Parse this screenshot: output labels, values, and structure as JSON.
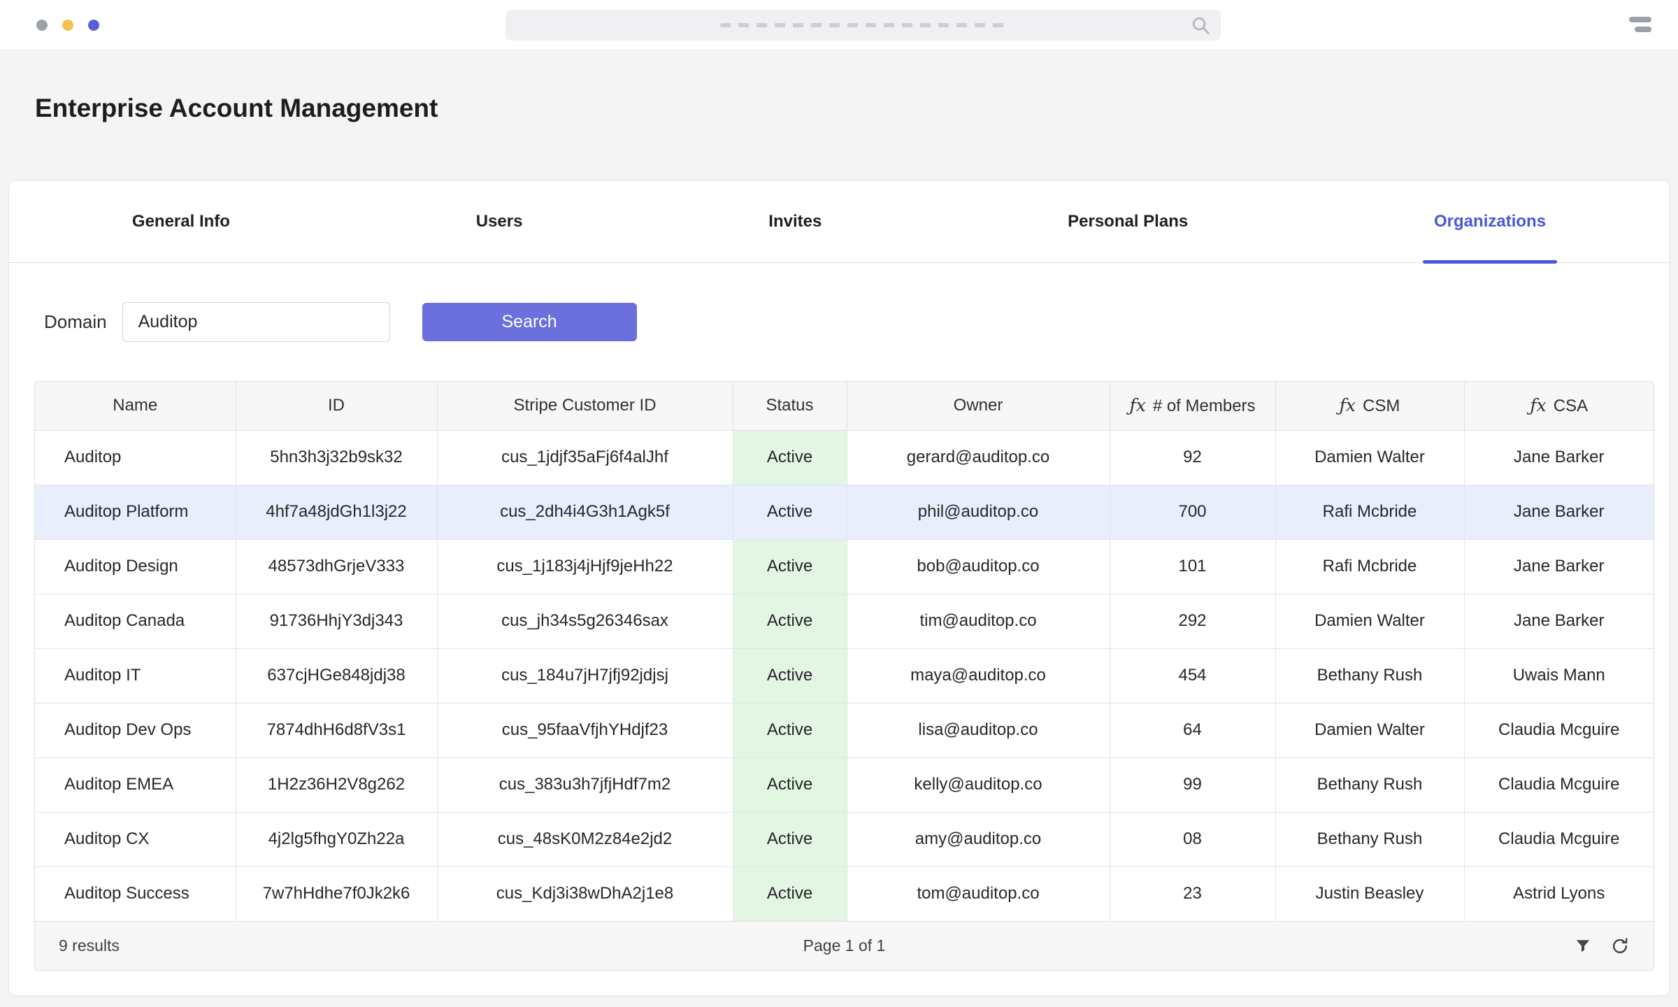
{
  "topbar": {
    "traffic_lights": [
      "#9da1a8",
      "#f3c24d",
      "#585fd9"
    ]
  },
  "page": {
    "title": "Enterprise Account Management"
  },
  "tabs": [
    {
      "label": "General Info",
      "active": false
    },
    {
      "label": "Users",
      "active": false
    },
    {
      "label": "Invites",
      "active": false
    },
    {
      "label": "Personal Plans",
      "active": false
    },
    {
      "label": "Organizations",
      "active": true
    }
  ],
  "filter": {
    "domain_label": "Domain",
    "domain_value": "Auditop",
    "search_label": "Search"
  },
  "colors": {
    "tab_active": "#4a57d6",
    "search_button": "#6b70dd",
    "status_active_bg": "#e3f6e3",
    "row_highlight_bg": "#e8eefb"
  },
  "table": {
    "fx_symbol": "ƒx",
    "columns": [
      {
        "label": "Name",
        "fx": false
      },
      {
        "label": "ID",
        "fx": false
      },
      {
        "label": "Stripe Customer ID",
        "fx": false
      },
      {
        "label": "Status",
        "fx": false
      },
      {
        "label": "Owner",
        "fx": false
      },
      {
        "label": "# of Members",
        "fx": true
      },
      {
        "label": "CSM",
        "fx": true
      },
      {
        "label": "CSA",
        "fx": true
      }
    ],
    "rows": [
      {
        "name": "Auditop",
        "id": "5hn3h3j32b9sk32",
        "stripe": "cus_1jdjf35aFj6f4alJhf",
        "status": "Active",
        "owner": "gerard@auditop.co",
        "members": "92",
        "csm": "Damien Walter",
        "csa": "Jane Barker",
        "highlighted": false
      },
      {
        "name": "Auditop Platform",
        "id": "4hf7a48jdGh1l3j22",
        "stripe": "cus_2dh4i4G3h1Agk5f",
        "status": "Active",
        "owner": "phil@auditop.co",
        "members": "700",
        "csm": "Rafi Mcbride",
        "csa": "Jane Barker",
        "highlighted": true
      },
      {
        "name": "Auditop Design",
        "id": "48573dhGrjeV333",
        "stripe": "cus_1j183j4jHjf9jeHh22",
        "status": "Active",
        "owner": "bob@auditop.co",
        "members": "101",
        "csm": "Rafi Mcbride",
        "csa": "Jane Barker",
        "highlighted": false
      },
      {
        "name": "Auditop Canada",
        "id": "91736HhjY3dj343",
        "stripe": "cus_jh34s5g26346sax",
        "status": "Active",
        "owner": "tim@auditop.co",
        "members": "292",
        "csm": "Damien Walter",
        "csa": "Jane Barker",
        "highlighted": false
      },
      {
        "name": "Auditop IT",
        "id": "637cjHGe848jdj38",
        "stripe": "cus_184u7jH7jfj92jdjsj",
        "status": "Active",
        "owner": "maya@auditop.co",
        "members": "454",
        "csm": "Bethany Rush",
        "csa": "Uwais Mann",
        "highlighted": false
      },
      {
        "name": "Auditop Dev Ops",
        "id": "7874dhH6d8fV3s1",
        "stripe": "cus_95faaVfjhYHdjf23",
        "status": "Active",
        "owner": "lisa@auditop.co",
        "members": "64",
        "csm": "Damien Walter",
        "csa": "Claudia Mcguire",
        "highlighted": false
      },
      {
        "name": "Auditop EMEA",
        "id": "1H2z36H2V8g262",
        "stripe": "cus_383u3h7jfjHdf7m2",
        "status": "Active",
        "owner": "kelly@auditop.co",
        "members": "99",
        "csm": "Bethany Rush",
        "csa": "Claudia Mcguire",
        "highlighted": false
      },
      {
        "name": "Auditop CX",
        "id": "4j2lg5fhgY0Zh22a",
        "stripe": "cus_48sK0M2z84e2jd2",
        "status": "Active",
        "owner": "amy@auditop.co",
        "members": "08",
        "csm": "Bethany Rush",
        "csa": "Claudia Mcguire",
        "highlighted": false
      },
      {
        "name": "Auditop Success",
        "id": "7w7hHdhe7f0Jk2k6",
        "stripe": "cus_Kdj3i38wDhA2j1e8",
        "status": "Active",
        "owner": "tom@auditop.co",
        "members": "23",
        "csm": "Justin Beasley",
        "csa": "Astrid Lyons",
        "highlighted": false
      }
    ]
  },
  "footer": {
    "results": "9 results",
    "page": "Page 1 of 1"
  }
}
